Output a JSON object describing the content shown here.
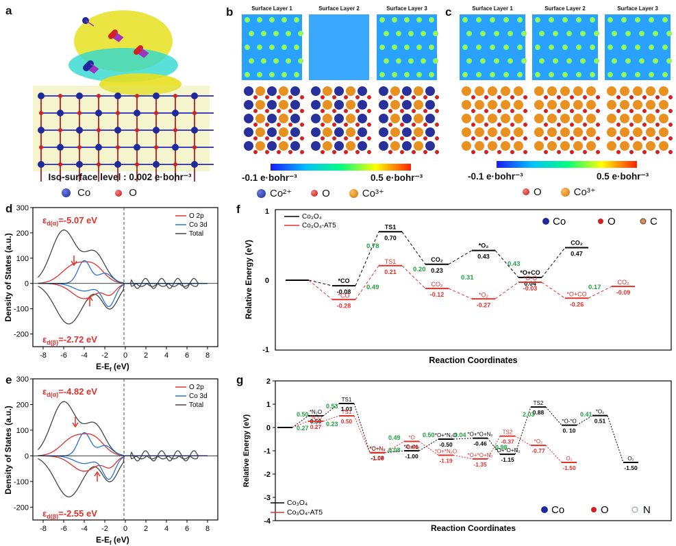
{
  "panel_labels": {
    "a": "a",
    "b": "b",
    "c": "c",
    "d": "d",
    "e": "e",
    "f": "f",
    "g": "g"
  },
  "panel_a": {
    "iso_label": "Iso-surface level : 0.002 e·bohr⁻³",
    "legend": [
      "Co",
      "O"
    ],
    "colors": {
      "co": "#1e2a9c",
      "o": "#d42020",
      "iso_yellow": "#e8e020",
      "iso_cyan": "#30d8d0"
    }
  },
  "panel_b": {
    "layers": [
      "Surface Layer 1",
      "Surface Layer 2",
      "Surface Layer 3"
    ],
    "scale_min": "-0.1 e·bohr⁻³",
    "scale_max": "0.5 e·bohr⁻³",
    "legend": [
      "Co²⁺",
      "O",
      "Co³⁺"
    ]
  },
  "panel_c": {
    "layers": [
      "Surface Layer 1",
      "Surface Layer 2",
      "Surface Layer 3"
    ],
    "scale_min": "-0.1 e·bohr⁻³",
    "scale_max": "0.5 e·bohr⁻³",
    "legend": [
      "O",
      "Co³⁺"
    ]
  },
  "panel_d": {
    "ylabel": "Density of States (a.u.)",
    "xlabel": "E-E",
    "xlabel_sub": "f",
    "xlabel_unit": " (eV)",
    "legend": [
      "O 2p",
      "Co 3d",
      "Total"
    ],
    "eps_up": "ε",
    "eps_up_sub": "d(α)",
    "eps_up_val": "=-5.07 eV",
    "eps_dn": "ε",
    "eps_dn_sub": "d(β)",
    "eps_dn_val": "=-2.72 eV",
    "xticks": [
      "-8",
      "-6",
      "-4",
      "-2",
      "0",
      "2",
      "4",
      "6",
      "8"
    ],
    "yticks": [
      "300",
      "200",
      "100",
      "0",
      "-100",
      "-200"
    ]
  },
  "panel_e": {
    "ylabel": "Density of States (a.u.)",
    "xlabel": "E-E",
    "xlabel_sub": "f",
    "xlabel_unit": " (eV)",
    "legend": [
      "O 2p",
      "Co 3d",
      "Total"
    ],
    "eps_up": "ε",
    "eps_up_sub": "d(α)",
    "eps_up_val": "=-4.82 eV",
    "eps_dn": "ε",
    "eps_dn_sub": "d(β)",
    "eps_dn_val": "=-2.55 eV",
    "xticks": [
      "-8",
      "-6",
      "-4",
      "-2",
      "0",
      "2",
      "4",
      "6",
      "8"
    ],
    "yticks": [
      "300",
      "200",
      "100",
      "0",
      "-100",
      "-200"
    ]
  },
  "panel_f": {
    "ylabel": "Relative Energy (eV)",
    "xlabel": "Reaction Coordinates",
    "yticks": [
      "1",
      "0",
      "-1"
    ],
    "legend_lines": [
      "Co₃O₄",
      "Co₃O₄-AT5"
    ],
    "legend_atoms": [
      "Co",
      "O",
      "C"
    ],
    "black": [
      {
        "label": "",
        "value": ""
      },
      {
        "label": "*CO",
        "value": "-0.08"
      },
      {
        "label": "TS1",
        "value": "0.70"
      },
      {
        "label": "CO₂",
        "value": "0.23"
      },
      {
        "label": "*O₂",
        "value": "0.43"
      },
      {
        "label": "*O+CO",
        "value": "0.04"
      },
      {
        "label": "CO₂",
        "value": "0.47"
      }
    ],
    "red": [
      {
        "label": "*CO",
        "value": "-0.28"
      },
      {
        "label": "TS1",
        "value": "0.21"
      },
      {
        "label": "CO₂",
        "value": "-0.12"
      },
      {
        "label": "*O₂",
        "value": "-0.27"
      },
      {
        "label": "*O-O",
        "value": "-0.03"
      },
      {
        "label": "*O+CO",
        "value": "-0.26"
      },
      {
        "label": "CO₂",
        "value": "-0.09"
      }
    ],
    "barriers": [
      "0.78",
      "0.49",
      "0.20",
      "0.31",
      "0.43",
      "0.17"
    ]
  },
  "panel_g": {
    "ylabel": "Relative Energy (eV)",
    "xlabel": "Reaction Coordinates",
    "yticks": [
      "2",
      "1",
      "0",
      "-1",
      "-2",
      "-3",
      "-4"
    ],
    "legend_lines": [
      "Co₃O₄",
      "Co₃O₄-AT5"
    ],
    "legend_atoms": [
      "Co",
      "O",
      "N"
    ],
    "black_labels": [
      "*N₂O",
      "TS1",
      "*O+N₂",
      "*O+N₂",
      "*O+*N₂O",
      "*O+*O+N₂",
      "*O+*O+N₂",
      "TS2",
      "*O-*O",
      "*O₂",
      "O₂"
    ],
    "black_values": [
      "0.50",
      "1.03",
      "-1.08",
      "-1.00",
      "-0.50",
      "-0.46",
      "-1.15",
      "0.88",
      "0. 10",
      "0.51",
      "-1.50"
    ],
    "red_labels": [
      "*N₂O",
      "TS1",
      "*O+N₂",
      "*O",
      "*O+*N₂O",
      "*O+*O+N₂",
      "TS2",
      "*O₂",
      "O₂"
    ],
    "red_values": [
      "0.27",
      "0.50",
      "-1.09",
      "-0.60",
      "-1.19",
      "-1.35",
      "-0.37",
      "-0.77",
      "-1.50"
    ],
    "barriers": [
      "0.50",
      "0.53",
      "0.27",
      "0.23",
      "0.49",
      "0.08",
      "0.50",
      "0.04",
      "0.98",
      "2.03",
      "0.41"
    ]
  }
}
